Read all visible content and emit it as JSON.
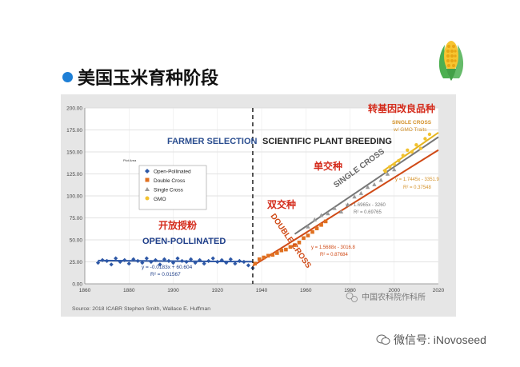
{
  "slide": {
    "title": "美国玉米育种阶段",
    "corn_icon": "corn-icon",
    "footer_watermark": "微信号: iNovoseed",
    "bullet_color": "#1e7fd6"
  },
  "chart_data": {
    "type": "scatter",
    "xlim": [
      1860,
      2020
    ],
    "ylim": [
      0,
      200
    ],
    "x_ticks": [
      "1860",
      "1880",
      "1900",
      "1920",
      "1940",
      "1960",
      "1980",
      "2000",
      "2020"
    ],
    "y_ticks": [
      "0.00",
      "25.00",
      "50.00",
      "75.00",
      "100.00",
      "125.00",
      "150.00",
      "175.00",
      "200.00"
    ],
    "grid": true,
    "legend_position": "upper-left",
    "legend": [
      {
        "name": "Open-Pollinated",
        "color": "#2e58a6",
        "marker": "diamond"
      },
      {
        "name": "Double Cross",
        "color": "#e07020",
        "marker": "square"
      },
      {
        "name": "Single Cross",
        "color": "#9a9a9a",
        "marker": "triangle"
      },
      {
        "name": "GMO",
        "color": "#f2c230",
        "marker": "circle"
      }
    ],
    "divider_year": 1936,
    "small_legend_title": "Plot Area",
    "header_left": "FARMER SELECTION",
    "header_right": "SCIENTIFIC PLANT BREEDING",
    "annotations": {
      "op_cn": "开放授粉",
      "op_en": "OPEN-POLLINATED",
      "dc_cn": "双交种",
      "dc_en": "DOUBLE CROSS",
      "sc_cn": "单交种",
      "sc_en": "SINGLE CROSS",
      "gmo_cn": "转基因改良品种",
      "gmo_en_1": "SINGLE CROSS",
      "gmo_en_2": "w/ GMO Traits"
    },
    "equations": {
      "op_eq": "y = -0.0183x + 60.604",
      "op_r2": "R² = 0.01567",
      "dc_eq": "y = 1.5688x - 3016.8",
      "dc_r2": "R² = 0.87684",
      "sc_eq": "y = 1.6965x - 3260",
      "sc_r2": "R² = 0.69765",
      "gmo_eq": "y = 1.7445x - 3351.9",
      "gmo_r2": "R² = 0.37548"
    },
    "source": "Source:  2018 ICABR Stephen Smith, Wallace E. Huffman",
    "watermark": "中国农科院作科所",
    "series": [
      {
        "name": "Open-Pollinated",
        "x": [
          1866,
          1868,
          1870,
          1872,
          1874,
          1876,
          1878,
          1880,
          1882,
          1884,
          1886,
          1888,
          1890,
          1892,
          1894,
          1896,
          1898,
          1900,
          1902,
          1904,
          1906,
          1908,
          1910,
          1912,
          1914,
          1916,
          1918,
          1920,
          1922,
          1924,
          1926,
          1928,
          1930,
          1932,
          1934,
          1936
        ],
        "y": [
          24,
          27,
          26,
          22,
          29,
          25,
          27,
          23,
          28,
          26,
          24,
          29,
          25,
          27,
          22,
          28,
          26,
          24,
          29,
          26,
          25,
          28,
          24,
          27,
          23,
          26,
          29,
          25,
          27,
          24,
          28,
          23,
          26,
          25,
          21,
          18
        ]
      },
      {
        "name": "Double Cross",
        "x": [
          1937,
          1939,
          1941,
          1943,
          1945,
          1947,
          1949,
          1951,
          1953,
          1955,
          1957,
          1959,
          1961,
          1963,
          1965,
          1967,
          1969
        ],
        "y": [
          23,
          28,
          30,
          32,
          33,
          35,
          38,
          39,
          42,
          44,
          47,
          52,
          55,
          59,
          63,
          67,
          71
        ]
      },
      {
        "name": "Single Cross",
        "x": [
          1961,
          1964,
          1967,
          1970,
          1973,
          1976,
          1979,
          1982,
          1985,
          1988,
          1991,
          1994,
          1997,
          2000
        ],
        "y": [
          65,
          73,
          78,
          80,
          86,
          82,
          90,
          99,
          103,
          110,
          113,
          118,
          125,
          130
        ]
      },
      {
        "name": "GMO",
        "x": [
          1996,
          1998,
          2000,
          2002,
          2004,
          2006,
          2008,
          2010,
          2012,
          2014,
          2016
        ],
        "y": [
          128,
          133,
          136,
          140,
          146,
          152,
          150,
          158,
          154,
          165,
          170
        ]
      }
    ],
    "trendlines": [
      {
        "name": "Open-Pollinated",
        "x": [
          1866,
          1936
        ],
        "color": "#2e58a6"
      },
      {
        "name": "Double Cross",
        "x": [
          1936,
          2020
        ],
        "color": "#d04a16"
      },
      {
        "name": "Single Cross",
        "x": [
          1955,
          2020
        ],
        "color": "#777777"
      },
      {
        "name": "GMO",
        "x": [
          1995,
          2020
        ],
        "color": "#e6b520"
      }
    ]
  }
}
